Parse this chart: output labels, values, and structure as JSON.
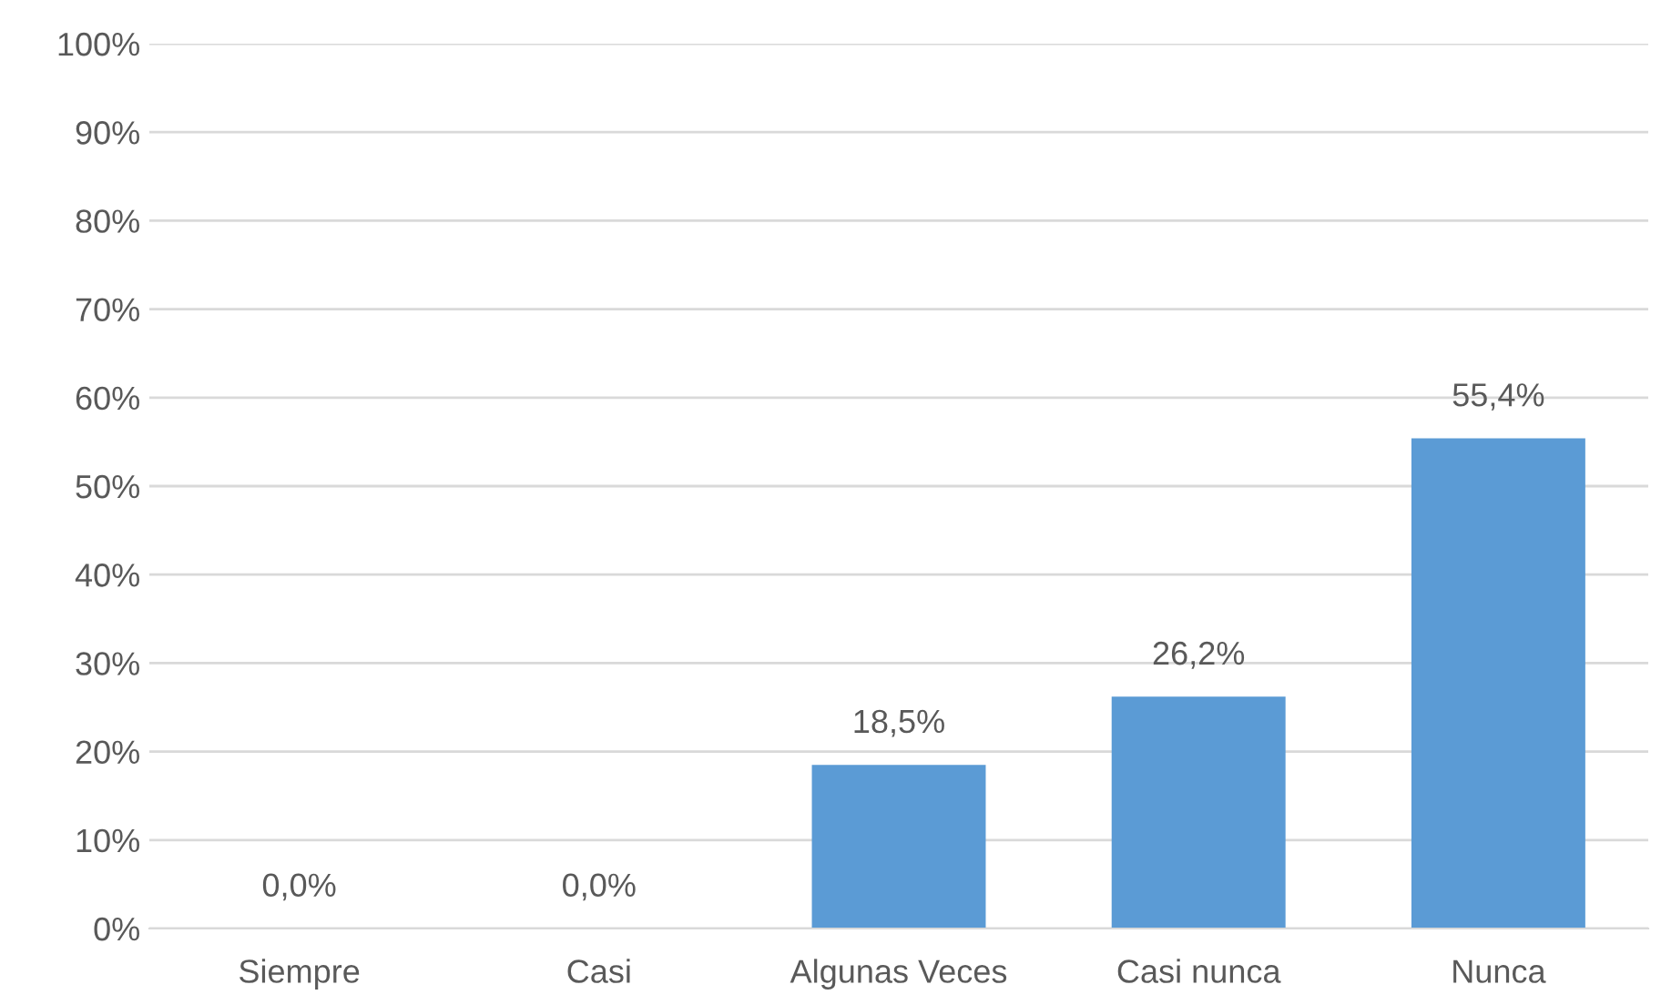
{
  "chart_data": {
    "type": "bar",
    "categories": [
      "Siempre",
      "Casi",
      "Algunas Veces",
      "Casi nunca",
      "Nunca"
    ],
    "values": [
      0.0,
      0.0,
      18.5,
      26.2,
      55.4
    ],
    "value_labels": [
      "0,0%",
      "0,0%",
      "18,5%",
      "26,2%",
      "55,4%"
    ],
    "color": "#5b9bd5",
    "ylim": [
      0,
      100
    ],
    "yticks": [
      {
        "value": 0,
        "label": "0%"
      },
      {
        "value": 10,
        "label": "10%"
      },
      {
        "value": 20,
        "label": "20%"
      },
      {
        "value": 30,
        "label": "30%"
      },
      {
        "value": 40,
        "label": "40%"
      },
      {
        "value": 50,
        "label": "50%"
      },
      {
        "value": 60,
        "label": "60%"
      },
      {
        "value": 70,
        "label": "70%"
      },
      {
        "value": 80,
        "label": "80%"
      },
      {
        "value": 90,
        "label": "90%"
      },
      {
        "value": 100,
        "label": "100%"
      }
    ],
    "grid": "y"
  }
}
